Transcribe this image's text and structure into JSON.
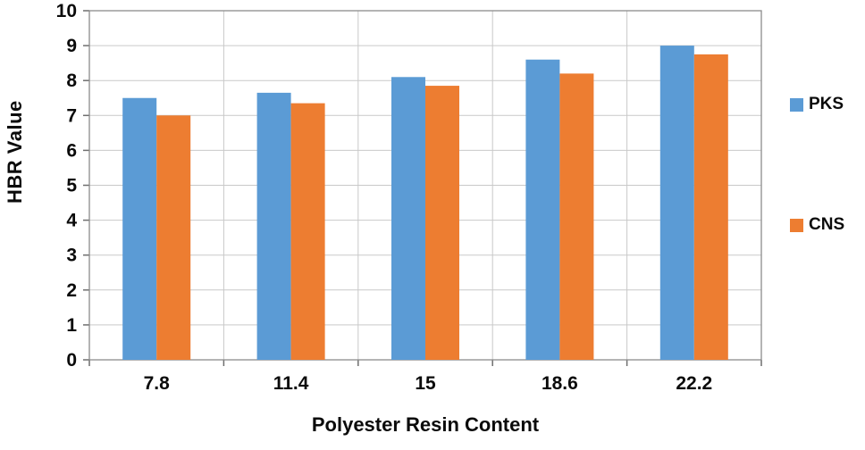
{
  "chart_data": {
    "type": "bar",
    "categories": [
      "7.8",
      "11.4",
      "15",
      "18.6",
      "22.2"
    ],
    "series": [
      {
        "name": "PKS",
        "color": "#5B9BD5",
        "values": [
          7.5,
          7.65,
          8.1,
          8.6,
          9.0
        ]
      },
      {
        "name": "CNS",
        "color": "#ED7D31",
        "values": [
          7.0,
          7.35,
          7.85,
          8.2,
          8.75
        ]
      }
    ],
    "title": "",
    "xlabel": "Polyester Resin Content",
    "ylabel": "HBR Value",
    "ylim": [
      0,
      10
    ],
    "ytick_step": 1,
    "grid": true,
    "legend_position": "right",
    "colors": {
      "gridline": "#c9c9c9",
      "axis_border": "#8c8c8c",
      "tick": "#6e6e6e",
      "label_text": "#0b0b0b"
    }
  }
}
